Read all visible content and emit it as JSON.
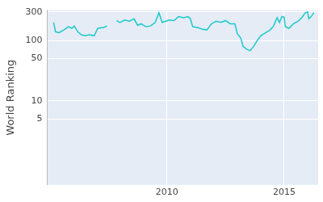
{
  "chart_data": {
    "type": "line",
    "y_label": "World Ranking",
    "x": [
      2005.17,
      2005.25,
      2005.4,
      2005.6,
      2005.8,
      2005.95,
      2006.05,
      2006.2,
      2006.35,
      2006.5,
      2006.7,
      2006.9,
      2007.05,
      2007.3,
      2007.45,
      2007.6,
      2007.85,
      2008.0,
      2008.2,
      2008.4,
      2008.6,
      2008.75,
      2008.9,
      2009.1,
      2009.3,
      2009.5,
      2009.66,
      2009.8,
      2009.95,
      2010.1,
      2010.3,
      2010.5,
      2010.7,
      2010.9,
      2011.0,
      2011.1,
      2011.3,
      2011.5,
      2011.7,
      2011.9,
      2012.1,
      2012.3,
      2012.5,
      2012.7,
      2012.9,
      2013.0,
      2013.15,
      2013.25,
      2013.4,
      2013.55,
      2013.7,
      2013.85,
      2014.0,
      2014.2,
      2014.4,
      2014.55,
      2014.7,
      2014.8,
      2014.9,
      2015.0,
      2015.05,
      2015.2,
      2015.4,
      2015.6,
      2015.75,
      2015.9,
      2016.0,
      2016.05,
      2016.15,
      2016.27
    ],
    "values": [
      200,
      140,
      135,
      150,
      170,
      160,
      175,
      140,
      125,
      120,
      125,
      120,
      160,
      165,
      175,
      null,
      215,
      200,
      220,
      210,
      230,
      180,
      190,
      170,
      175,
      200,
      290,
      200,
      210,
      220,
      215,
      250,
      240,
      250,
      230,
      170,
      165,
      155,
      150,
      190,
      210,
      200,
      215,
      190,
      190,
      130,
      110,
      80,
      72,
      68,
      80,
      100,
      120,
      135,
      150,
      175,
      240,
      200,
      250,
      245,
      170,
      160,
      190,
      210,
      240,
      290,
      300,
      230,
      250,
      290
    ],
    "color": "#1cc9c9",
    "log": "y",
    "xlim": [
      2004.9,
      2016.45
    ],
    "xticks": [
      2010,
      2015
    ],
    "ylim": [
      0.4,
      320
    ],
    "yticks": [
      5,
      10,
      50,
      100,
      300
    ],
    "grid": true
  }
}
